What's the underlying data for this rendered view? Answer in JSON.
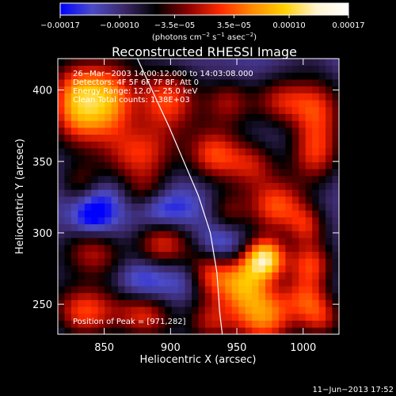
{
  "chart_data": {
    "type": "heatmap",
    "title": "Reconstructed RHESSI Image",
    "xlabel": "Heliocentric X (arcsec)",
    "ylabel": "Heliocentric Y (arcsec)",
    "xlim": [
      815,
      1027
    ],
    "ylim": [
      229,
      422
    ],
    "xticks": [
      850,
      900,
      950,
      1000
    ],
    "yticks": [
      250,
      300,
      350,
      400
    ],
    "colorbar": {
      "label_parts": [
        "(photons cm",
        "−2",
        " s",
        "−1",
        " asec",
        "−2",
        ")"
      ],
      "range": [
        -0.00017,
        0.00017
      ],
      "ticks": [
        {
          "value": -0.00017,
          "label": "−0.00017"
        },
        {
          "value": -0.0001,
          "label": "−0.00010"
        },
        {
          "value": -3.5e-05,
          "label": "−3.5e−05"
        },
        {
          "value": 3.5e-05,
          "label": "3.5e−05"
        },
        {
          "value": 0.0001,
          "label": "0.00010"
        },
        {
          "value": 0.00017,
          "label": "0.00017"
        }
      ],
      "colors": [
        "#0000ff",
        "#4b4bc7",
        "#3b2868",
        "#000000",
        "#8b0000",
        "#ff2a00",
        "#ff8a00",
        "#ffd000",
        "#fff3cf",
        "#ffffff"
      ]
    },
    "annotations": [
      "26−Mar−2003 14:00:12.000 to 14:03:08.000",
      "Detectors: 4F 5F 6F 7F 8F, Att 0",
      "Energy Range: 12.0 − 25.0 keV",
      "Clean     Total counts: 1.38E+03",
      "Position of Peak = [971,282]"
    ],
    "limb": [
      {
        "x": 875,
        "y": 422
      },
      {
        "x": 887,
        "y": 398
      },
      {
        "x": 899,
        "y": 374
      },
      {
        "x": 910,
        "y": 350
      },
      {
        "x": 921,
        "y": 326
      },
      {
        "x": 930,
        "y": 300
      },
      {
        "x": 935,
        "y": 272
      },
      {
        "x": 937,
        "y": 245
      },
      {
        "x": 939,
        "y": 229
      }
    ],
    "peak": {
      "x": 971,
      "y": 282
    },
    "image": {
      "x_start": 815,
      "x_end": 1027,
      "y_start": 229,
      "y_end": 422,
      "base": -0.000105,
      "blobs": [
        {
          "x": 832,
          "y": 392,
          "sx": 16,
          "sy": 22,
          "a": 0.000175
        },
        {
          "x": 857,
          "y": 393,
          "sx": 13,
          "sy": 18,
          "a": 0.000125
        },
        {
          "x": 895,
          "y": 392,
          "sx": 18,
          "sy": 16,
          "a": 0.000115
        },
        {
          "x": 943,
          "y": 392,
          "sx": 13,
          "sy": 12,
          "a": 9.5e-05
        },
        {
          "x": 985,
          "y": 392,
          "sx": 15,
          "sy": 12,
          "a": 0.0001
        },
        {
          "x": 1010,
          "y": 387,
          "sx": 13,
          "sy": 15,
          "a": 0.000105
        },
        {
          "x": 882,
          "y": 356,
          "sx": 20,
          "sy": 14,
          "a": 0.00011
        },
        {
          "x": 932,
          "y": 355,
          "sx": 14,
          "sy": 13,
          "a": 0.000105
        },
        {
          "x": 962,
          "y": 348,
          "sx": 14,
          "sy": 12,
          "a": 9.5e-05
        },
        {
          "x": 1010,
          "y": 356,
          "sx": 14,
          "sy": 15,
          "a": 0.00011
        },
        {
          "x": 833,
          "y": 334,
          "sx": 12,
          "sy": 11,
          "a": 8.5e-05
        },
        {
          "x": 883,
          "y": 326,
          "sx": 12,
          "sy": 11,
          "a": 9e-05
        },
        {
          "x": 943,
          "y": 315,
          "sx": 11,
          "sy": 11,
          "a": 8e-05
        },
        {
          "x": 981,
          "y": 319,
          "sx": 16,
          "sy": 13,
          "a": 0.00012
        },
        {
          "x": 1003,
          "y": 305,
          "sx": 10,
          "sy": 10,
          "a": 9e-05
        },
        {
          "x": 842,
          "y": 285,
          "sx": 16,
          "sy": 12,
          "a": 0.0001
        },
        {
          "x": 894,
          "y": 292,
          "sx": 15,
          "sy": 12,
          "a": 0.00011
        },
        {
          "x": 928,
          "y": 272,
          "sx": 13,
          "sy": 12,
          "a": 0.0001
        },
        {
          "x": 971,
          "y": 282,
          "sx": 11,
          "sy": 10,
          "a": 0.00022
        },
        {
          "x": 955,
          "y": 266,
          "sx": 13,
          "sy": 12,
          "a": 0.000125
        },
        {
          "x": 1005,
          "y": 278,
          "sx": 12,
          "sy": 11,
          "a": 0.00011
        },
        {
          "x": 835,
          "y": 246,
          "sx": 18,
          "sy": 13,
          "a": 0.00012
        },
        {
          "x": 880,
          "y": 243,
          "sx": 15,
          "sy": 12,
          "a": 0.000115
        },
        {
          "x": 930,
          "y": 237,
          "sx": 13,
          "sy": 12,
          "a": 0.0001
        },
        {
          "x": 970,
          "y": 244,
          "sx": 18,
          "sy": 15,
          "a": 0.00015
        },
        {
          "x": 1013,
          "y": 240,
          "sx": 12,
          "sy": 11,
          "a": 0.00011
        },
        {
          "x": 1002,
          "y": 255,
          "sx": 12,
          "sy": 10,
          "a": 8e-05
        }
      ],
      "wells": [
        {
          "x": 843,
          "y": 323,
          "sx": 14,
          "sy": 11,
          "a": -7e-05
        },
        {
          "x": 840,
          "y": 310,
          "sx": 10,
          "sy": 8,
          "a": -5.5e-05
        },
        {
          "x": 900,
          "y": 316,
          "sx": 14,
          "sy": 11,
          "a": -7.5e-05
        },
        {
          "x": 886,
          "y": 320,
          "sx": 10,
          "sy": 10,
          "a": -5.5e-05
        },
        {
          "x": 878,
          "y": 266,
          "sx": 14,
          "sy": 11,
          "a": -6e-05
        },
        {
          "x": 937,
          "y": 291,
          "sx": 12,
          "sy": 10,
          "a": -5.5e-05
        },
        {
          "x": 913,
          "y": 268,
          "sx": 10,
          "sy": 10,
          "a": -4e-05
        }
      ]
    }
  },
  "date_stamp": "11−Jun−2013 17:52"
}
